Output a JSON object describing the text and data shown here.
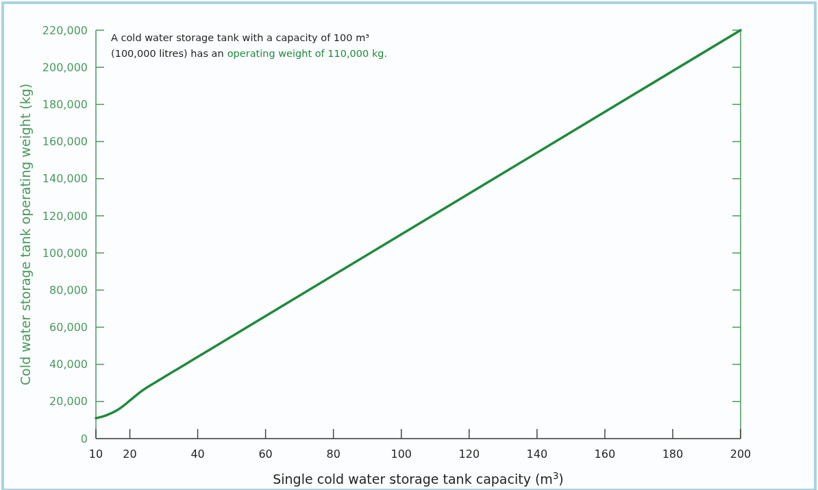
{
  "chart_data": {
    "type": "line",
    "xlabel": "Single cold water storage tank capacity (m$^{3}$)",
    "ylabel": "Cold water storage tank operating weight  (kg)",
    "annotations": [
      "A cold water storage tank with a capacity of 100 m³",
      "(100,000 litres) has an",
      "operating weight of 110,000 kg."
    ],
    "xlim": [
      10,
      200
    ],
    "xticks": [
      10,
      20,
      40,
      60,
      80,
      100,
      120,
      140,
      160,
      180,
      200
    ],
    "ylim": [
      0,
      220000
    ],
    "yticks": [
      {
        "value": 0,
        "label": "0"
      },
      {
        "value": 20000,
        "label": "20,000"
      },
      {
        "value": 40000,
        "label": "40,000"
      },
      {
        "value": 60000,
        "label": "60,000"
      },
      {
        "value": 80000,
        "label": "80,000"
      },
      {
        "value": 100000,
        "label": "100,000"
      },
      {
        "value": 120000,
        "label": "120,000"
      },
      {
        "value": 140000,
        "label": "140,000"
      },
      {
        "value": 160000,
        "label": "160,000"
      },
      {
        "value": 180000,
        "label": "180,000"
      },
      {
        "value": 200000,
        "label": "200,000"
      },
      {
        "value": 220000,
        "label": "220,000"
      }
    ],
    "grid": false,
    "marker": "none",
    "line_style": "solid",
    "series": [
      {
        "color": "#1e8a3c",
        "x": [
          10,
          13,
          16,
          18,
          20,
          23,
          30,
          40,
          100,
          200
        ],
        "values": [
          11000,
          12500,
          15000,
          17500,
          20500,
          25000,
          33000,
          44000,
          110000,
          220000
        ]
      }
    ]
  }
}
